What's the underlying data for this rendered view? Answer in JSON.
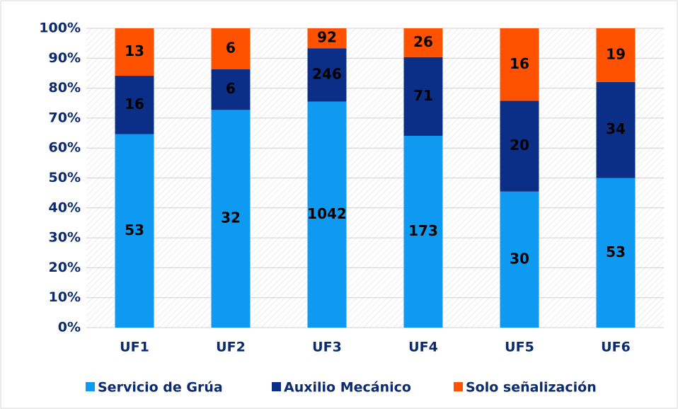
{
  "chart_data": {
    "type": "bar",
    "stacked": "percent",
    "categories": [
      "UF1",
      "UF2",
      "UF3",
      "UF4",
      "UF5",
      "UF6"
    ],
    "series": [
      {
        "name": "Servicio de Grúa",
        "color": "#0f9af2",
        "values": [
          53,
          32,
          1042,
          173,
          30,
          53
        ]
      },
      {
        "name": "Auxilio Mecánico",
        "color": "#0b2f87",
        "values": [
          16,
          6,
          246,
          71,
          20,
          34
        ]
      },
      {
        "name": "Solo señalización",
        "color": "#ff5200",
        "values": [
          13,
          6,
          92,
          26,
          16,
          19
        ]
      }
    ],
    "ylim": [
      0,
      100
    ],
    "yticks": [
      {
        "value": 0,
        "label": "0%"
      },
      {
        "value": 10,
        "label": "10%"
      },
      {
        "value": 20,
        "label": "20%"
      },
      {
        "value": 30,
        "label": "30%"
      },
      {
        "value": 40,
        "label": "40%"
      },
      {
        "value": 50,
        "label": "50%"
      },
      {
        "value": 60,
        "label": "60%"
      },
      {
        "value": 70,
        "label": "70%"
      },
      {
        "value": 80,
        "label": "80%"
      },
      {
        "value": 90,
        "label": "90%"
      },
      {
        "value": 100,
        "label": "100%"
      }
    ],
    "grid": true,
    "legend": "bottom"
  }
}
